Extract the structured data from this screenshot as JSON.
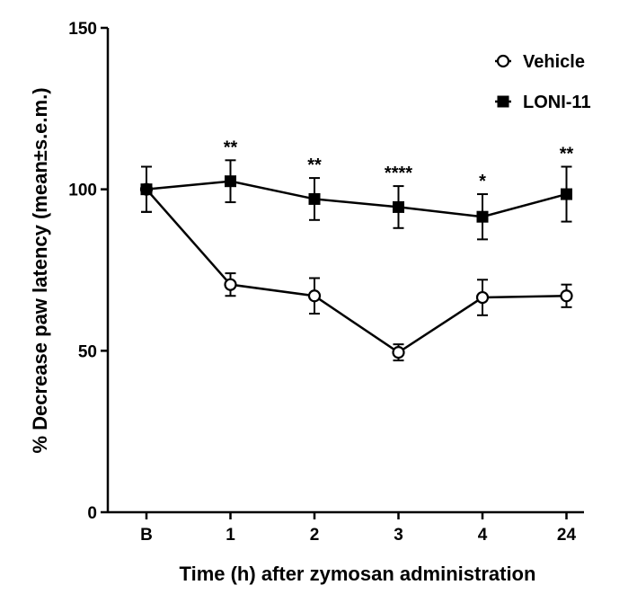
{
  "chart_data": {
    "type": "line",
    "title": "",
    "xlabel": "Time (h) after zymosan administration",
    "ylabel": "% Decrease paw latency (mean±s.e.m.)",
    "categories": [
      "B",
      "1",
      "2",
      "3",
      "4",
      "24"
    ],
    "ylim": [
      0,
      150
    ],
    "yticks": [
      0,
      50,
      100,
      150
    ],
    "grid": false,
    "legend_position": "top-right",
    "series": [
      {
        "name": "Vehicle",
        "marker": "open-circle",
        "values": [
          100,
          70.5,
          67,
          49.5,
          66.5,
          67
        ],
        "errors": [
          7,
          3.5,
          5.5,
          2.5,
          5.5,
          3.5
        ]
      },
      {
        "name": "LONI-11",
        "marker": "filled-square",
        "values": [
          100,
          102.5,
          97,
          94.5,
          91.5,
          98.5
        ],
        "errors": [
          7,
          6.5,
          6.5,
          6.5,
          7,
          8.5
        ]
      }
    ],
    "annotations": [
      "",
      "**",
      "**",
      "****",
      "*",
      "**"
    ]
  }
}
